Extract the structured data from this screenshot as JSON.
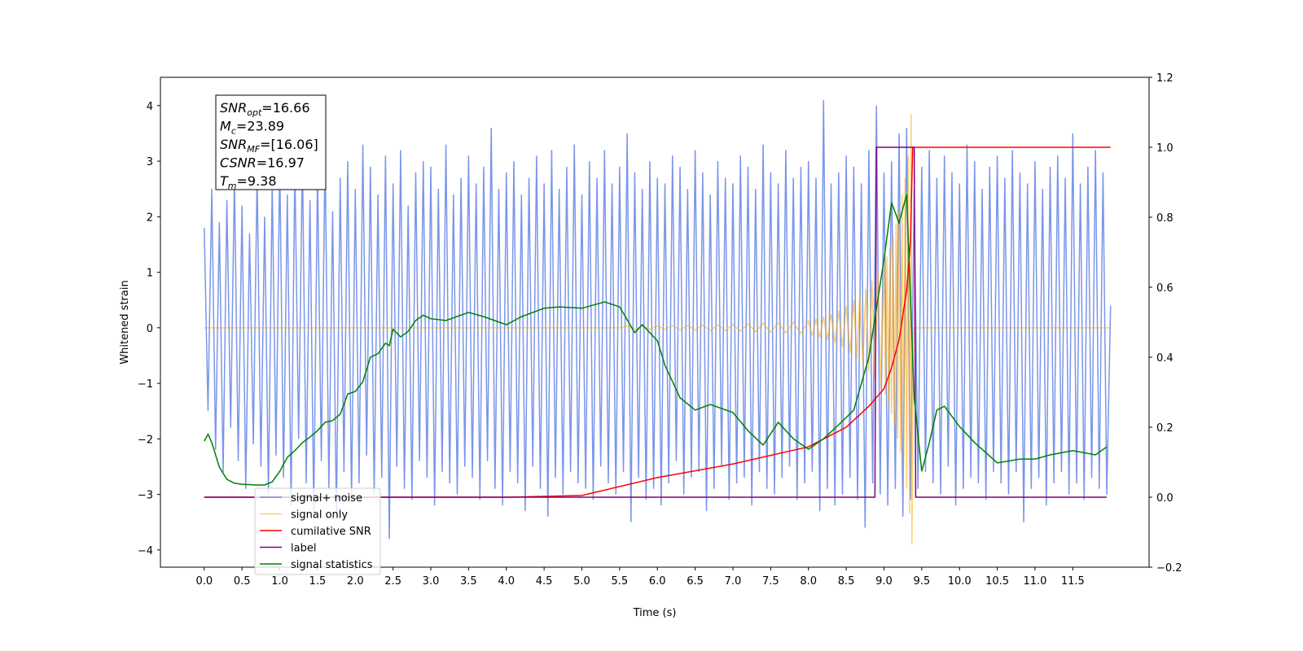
{
  "chart_data": {
    "type": "line",
    "xlabel": "Time (s)",
    "ylabel": "Whitened strain",
    "xlim": [
      -0.58,
      12.51
    ],
    "ylim": [
      -4.31,
      4.51
    ],
    "y2lim": [
      -0.2,
      1.2
    ],
    "xticks": [
      {
        "value": 0,
        "label": "0.0"
      },
      0.5,
      {
        "value": 1,
        "label": "1.0"
      },
      1.5,
      {
        "value": 2,
        "label": "2.0"
      },
      2.5,
      {
        "value": 3,
        "label": "3.0"
      },
      3.5,
      {
        "value": 4,
        "label": "4.0"
      },
      4.5,
      {
        "value": 5,
        "label": "5.0"
      },
      5.5,
      {
        "value": 6,
        "label": "6.0"
      },
      6.5,
      {
        "value": 7,
        "label": "7.0"
      },
      7.5,
      {
        "value": 8,
        "label": "8.0"
      },
      8.5,
      {
        "value": 9,
        "label": "9.0"
      },
      9.5,
      {
        "value": 10,
        "label": "10.0"
      },
      10.5,
      {
        "value": 11,
        "label": "11.0"
      },
      11.5
    ],
    "yticks": [
      {
        "value": -4,
        "label": "−4"
      },
      {
        "value": -3,
        "label": "−3"
      },
      {
        "value": -2,
        "label": "−2"
      },
      {
        "value": -1,
        "label": "−1"
      },
      0,
      1,
      2,
      3,
      4
    ],
    "y2ticks": [
      {
        "value": -0.2,
        "label": "−0.2"
      },
      {
        "value": 0,
        "label": "0.0"
      },
      0.2,
      0.4,
      0.6,
      0.8,
      {
        "value": 1,
        "label": "1.0"
      },
      1.2
    ],
    "legend": "lower left",
    "annotation": [
      {
        "symbol": "SNR",
        "sub": "opt",
        "text": "=16.66"
      },
      {
        "symbol": "M",
        "sub": "c",
        "text": "=23.89"
      },
      {
        "symbol": "SNR",
        "sub": "MF",
        "text": "=[16.06]"
      },
      {
        "symbol": "CSNR",
        "sub": "",
        "text": "=16.97"
      },
      {
        "symbol": "T",
        "sub": "m",
        "text": "=9.38"
      }
    ],
    "series": [
      {
        "name": "signal+ noise",
        "color": "#4169e1",
        "alpha": 0.7,
        "axis": "y",
        "x": [
          0,
          0.05,
          0.1,
          0.15,
          0.2,
          0.25,
          0.3,
          0.35,
          0.4,
          0.45,
          0.5,
          0.55,
          0.6,
          0.65,
          0.7,
          0.75,
          0.8,
          0.85,
          0.9,
          0.95,
          1,
          1.05,
          1.1,
          1.15,
          1.2,
          1.25,
          1.3,
          1.35,
          1.4,
          1.45,
          1.5,
          1.55,
          1.6,
          1.65,
          1.7,
          1.75,
          1.8,
          1.85,
          1.9,
          1.95,
          2,
          2.05,
          2.1,
          2.15,
          2.2,
          2.25,
          2.3,
          2.35,
          2.4,
          2.45,
          2.5,
          2.55,
          2.6,
          2.65,
          2.7,
          2.75,
          2.8,
          2.85,
          2.9,
          2.95,
          3,
          3.05,
          3.1,
          3.15,
          3.2,
          3.25,
          3.3,
          3.35,
          3.4,
          3.45,
          3.5,
          3.55,
          3.6,
          3.65,
          3.7,
          3.75,
          3.8,
          3.85,
          3.9,
          3.95,
          4,
          4.05,
          4.1,
          4.15,
          4.2,
          4.25,
          4.3,
          4.35,
          4.4,
          4.45,
          4.5,
          4.55,
          4.6,
          4.65,
          4.7,
          4.75,
          4.8,
          4.85,
          4.9,
          4.95,
          5,
          5.05,
          5.1,
          5.15,
          5.2,
          5.25,
          5.3,
          5.35,
          5.4,
          5.45,
          5.5,
          5.55,
          5.6,
          5.65,
          5.7,
          5.75,
          5.8,
          5.85,
          5.9,
          5.95,
          6,
          6.05,
          6.1,
          6.15,
          6.2,
          6.25,
          6.3,
          6.35,
          6.4,
          6.45,
          6.5,
          6.55,
          6.6,
          6.65,
          6.7,
          6.75,
          6.8,
          6.85,
          6.9,
          6.95,
          7,
          7.05,
          7.1,
          7.15,
          7.2,
          7.25,
          7.3,
          7.35,
          7.4,
          7.45,
          7.5,
          7.55,
          7.6,
          7.65,
          7.7,
          7.75,
          7.8,
          7.85,
          7.9,
          7.95,
          8,
          8.05,
          8.1,
          8.15,
          8.2,
          8.25,
          8.3,
          8.35,
          8.4,
          8.45,
          8.5,
          8.55,
          8.6,
          8.65,
          8.7,
          8.75,
          8.8,
          8.85,
          8.9,
          8.95,
          9,
          9.05,
          9.1,
          9.15,
          9.2,
          9.25,
          9.3,
          9.35,
          9.4,
          9.45,
          9.5,
          9.55,
          9.6,
          9.65,
          9.7,
          9.75,
          9.8,
          9.85,
          9.9,
          9.95,
          10,
          10.05,
          10.1,
          10.15,
          10.2,
          10.25,
          10.3,
          10.35,
          10.4,
          10.45,
          10.5,
          10.55,
          10.6,
          10.65,
          10.7,
          10.75,
          10.8,
          10.85,
          10.9,
          10.95,
          11,
          11.05,
          11.1,
          11.15,
          11.2,
          11.25,
          11.3,
          11.35,
          11.4,
          11.45,
          11.5,
          11.55,
          11.6,
          11.65,
          11.7,
          11.75,
          11.8,
          11.85,
          11.9,
          11.95,
          12
        ],
        "values": [
          1.8,
          -1.5,
          2.5,
          -2.2,
          1.9,
          -2.6,
          2.3,
          -1.8,
          2.7,
          -2.4,
          2.2,
          -2.9,
          1.7,
          -2.1,
          2.8,
          -2.5,
          2.0,
          -3.0,
          2.6,
          -2.3,
          3.0,
          -2.7,
          2.4,
          -3.2,
          2.9,
          -2.0,
          3.1,
          -2.8,
          2.3,
          -3.3,
          2.8,
          -2.4,
          3.2,
          -2.9,
          2.1,
          -3.4,
          2.7,
          -2.6,
          3.0,
          -3.1,
          2.5,
          -2.8,
          3.3,
          -2.3,
          2.9,
          -3.0,
          2.4,
          -2.7,
          3.1,
          -3.8,
          2.6,
          -2.5,
          3.2,
          -2.9,
          2.2,
          -3.1,
          2.8,
          -2.4,
          3.0,
          -2.7,
          2.9,
          -3.2,
          2.5,
          -2.6,
          3.3,
          -2.8,
          2.4,
          -3.0,
          2.7,
          -2.5,
          3.1,
          -2.7,
          2.6,
          -3.1,
          2.9,
          -2.4,
          3.6,
          -2.9,
          2.5,
          -3.2,
          2.8,
          -2.6,
          3.0,
          -2.8,
          2.4,
          -3.3,
          2.7,
          -2.5,
          3.1,
          -2.9,
          2.6,
          -3.4,
          3.2,
          -2.7,
          2.5,
          -3.0,
          2.9,
          -2.6,
          3.3,
          -2.8,
          2.4,
          -2.9,
          3.0,
          -3.1,
          2.7,
          -2.5,
          3.2,
          -2.8,
          2.6,
          -3.0,
          2.9,
          -2.6,
          3.5,
          -3.5,
          2.8,
          -2.7,
          2.5,
          -3.1,
          3.0,
          -2.9,
          2.7,
          -3.2,
          2.6,
          -2.8,
          3.1,
          -2.4,
          2.9,
          -3.0,
          2.5,
          -2.7,
          3.2,
          -2.6,
          2.8,
          -3.3,
          2.4,
          -2.9,
          3.0,
          -2.5,
          2.7,
          -3.1,
          2.6,
          -2.8,
          3.1,
          -2.7,
          2.9,
          -3.2,
          2.5,
          -2.6,
          3.3,
          -2.9,
          2.8,
          -3.0,
          2.6,
          -2.7,
          3.2,
          -2.5,
          2.7,
          -3.1,
          2.9,
          -2.8,
          3.0,
          -2.6,
          2.7,
          -3.3,
          4.1,
          -2.9,
          2.6,
          -3.2,
          2.8,
          -3.0,
          3.1,
          -2.7,
          2.9,
          -3.1,
          2.6,
          -3.6,
          3.2,
          -2.8,
          4.0,
          -3.0,
          2.8,
          -3.2,
          3.0,
          -2.9,
          3.5,
          -3.4,
          3.6,
          -3.1,
          2.5,
          -2.9,
          2.9,
          -2.6,
          3.2,
          -2.8,
          2.7,
          -3.0,
          3.1,
          -2.5,
          2.8,
          -3.2,
          2.6,
          -2.9,
          3.3,
          -2.7,
          3.0,
          -2.8,
          2.5,
          -3.1,
          2.9,
          -2.6,
          3.1,
          -2.8,
          2.7,
          -3.0,
          3.2,
          -2.6,
          2.8,
          -3.5,
          2.6,
          -2.9,
          3.0,
          -2.7,
          2.5,
          -3.2,
          2.9,
          -2.8,
          3.1,
          -2.6,
          2.7,
          -3.0,
          3.5,
          -2.8,
          2.6,
          -3.1,
          2.9,
          -2.7,
          3.2,
          -2.9,
          2.8,
          -3.0,
          0.4
        ]
      },
      {
        "name": "signal only",
        "color": "#ffa500",
        "alpha": 0.55,
        "axis": "y",
        "x": [
          0,
          5.5,
          5.6,
          5.7,
          5.8,
          5.9,
          6.0,
          6.1,
          6.2,
          6.3,
          6.4,
          6.5,
          6.6,
          6.7,
          6.8,
          6.9,
          7.0,
          7.1,
          7.2,
          7.3,
          7.4,
          7.5,
          7.6,
          7.7,
          7.8,
          7.9,
          8.0,
          8.05,
          8.1,
          8.15,
          8.2,
          8.25,
          8.3,
          8.35,
          8.4,
          8.45,
          8.5,
          8.55,
          8.6,
          8.64,
          8.68,
          8.72,
          8.76,
          8.8,
          8.84,
          8.88,
          8.92,
          8.96,
          9.0,
          9.02,
          9.04,
          9.06,
          9.08,
          9.1,
          9.12,
          9.14,
          9.16,
          9.18,
          9.2,
          9.22,
          9.24,
          9.26,
          9.28,
          9.3,
          9.32,
          9.34,
          9.36,
          9.37,
          9.39,
          12
        ],
        "values": [
          0,
          0,
          0.03,
          -0.03,
          0.03,
          -0.03,
          0.03,
          -0.03,
          0.04,
          -0.04,
          0.04,
          -0.04,
          0.05,
          -0.05,
          0.05,
          -0.05,
          0.06,
          -0.06,
          0.07,
          -0.07,
          0.08,
          -0.08,
          0.09,
          -0.09,
          0.1,
          -0.1,
          0.12,
          -0.14,
          0.16,
          -0.18,
          0.2,
          -0.22,
          0.25,
          -0.28,
          0.31,
          -0.35,
          0.4,
          -0.45,
          0.5,
          -0.55,
          0.6,
          -0.65,
          0.7,
          -0.78,
          0.85,
          -0.92,
          1.0,
          -1.08,
          1.15,
          -1.2,
          1.28,
          -1.36,
          1.45,
          -1.55,
          1.65,
          -1.75,
          1.87,
          -2.0,
          2.12,
          -2.25,
          2.4,
          -2.55,
          2.7,
          -2.9,
          3.1,
          -3.35,
          3.85,
          -3.9,
          0,
          0
        ]
      },
      {
        "name": "cumilative SNR",
        "color": "#ff0000",
        "alpha": 1,
        "axis": "y2",
        "x": [
          0,
          4,
          5,
          6,
          7,
          8,
          8.5,
          8.8,
          9,
          9.1,
          9.2,
          9.3,
          9.35,
          9.38,
          12
        ],
        "values": [
          0,
          0,
          0.005,
          0.056,
          0.095,
          0.144,
          0.2,
          0.26,
          0.31,
          0.37,
          0.45,
          0.59,
          0.73,
          1.0,
          1.0
        ]
      },
      {
        "name": "label",
        "color": "#800080",
        "alpha": 1,
        "axis": "y2",
        "x": [
          0,
          8.88,
          8.9,
          9.4,
          9.42,
          11.95
        ],
        "values": [
          0,
          0,
          1,
          1,
          0,
          0
        ]
      },
      {
        "name": "signal statistics",
        "color": "#008000",
        "alpha": 1,
        "axis": "y2",
        "x": [
          0,
          0.05,
          0.1,
          0.2,
          0.3,
          0.4,
          0.5,
          0.7,
          0.8,
          0.9,
          1.0,
          1.1,
          1.2,
          1.3,
          1.4,
          1.5,
          1.6,
          1.7,
          1.8,
          1.9,
          2.0,
          2.1,
          2.2,
          2.3,
          2.4,
          2.45,
          2.5,
          2.6,
          2.7,
          2.8,
          2.9,
          3.0,
          3.2,
          3.5,
          3.7,
          4.0,
          4.2,
          4.5,
          4.7,
          5.0,
          5.3,
          5.5,
          5.7,
          5.8,
          6.0,
          6.1,
          6.3,
          6.5,
          6.7,
          7.0,
          7.2,
          7.4,
          7.6,
          7.8,
          8.0,
          8.2,
          8.4,
          8.6,
          8.8,
          9.0,
          9.1,
          9.2,
          9.3,
          9.4,
          9.5,
          9.6,
          9.7,
          9.8,
          10.0,
          10.2,
          10.5,
          10.8,
          11.0,
          11.2,
          11.5,
          11.8,
          11.95
        ],
        "values": [
          0.16,
          0.18,
          0.156,
          0.086,
          0.051,
          0.04,
          0.037,
          0.035,
          0.035,
          0.044,
          0.074,
          0.114,
          0.133,
          0.156,
          0.172,
          0.19,
          0.214,
          0.219,
          0.237,
          0.295,
          0.302,
          0.33,
          0.4,
          0.41,
          0.44,
          0.433,
          0.48,
          0.458,
          0.474,
          0.505,
          0.52,
          0.51,
          0.505,
          0.528,
          0.516,
          0.493,
          0.516,
          0.54,
          0.544,
          0.54,
          0.558,
          0.544,
          0.47,
          0.493,
          0.447,
          0.377,
          0.284,
          0.249,
          0.265,
          0.242,
          0.19,
          0.149,
          0.214,
          0.167,
          0.137,
          0.167,
          0.207,
          0.249,
          0.4,
          0.679,
          0.842,
          0.784,
          0.865,
          0.284,
          0.074,
          0.156,
          0.249,
          0.26,
          0.202,
          0.156,
          0.098,
          0.109,
          0.109,
          0.121,
          0.133,
          0.121,
          0.144
        ]
      }
    ]
  }
}
